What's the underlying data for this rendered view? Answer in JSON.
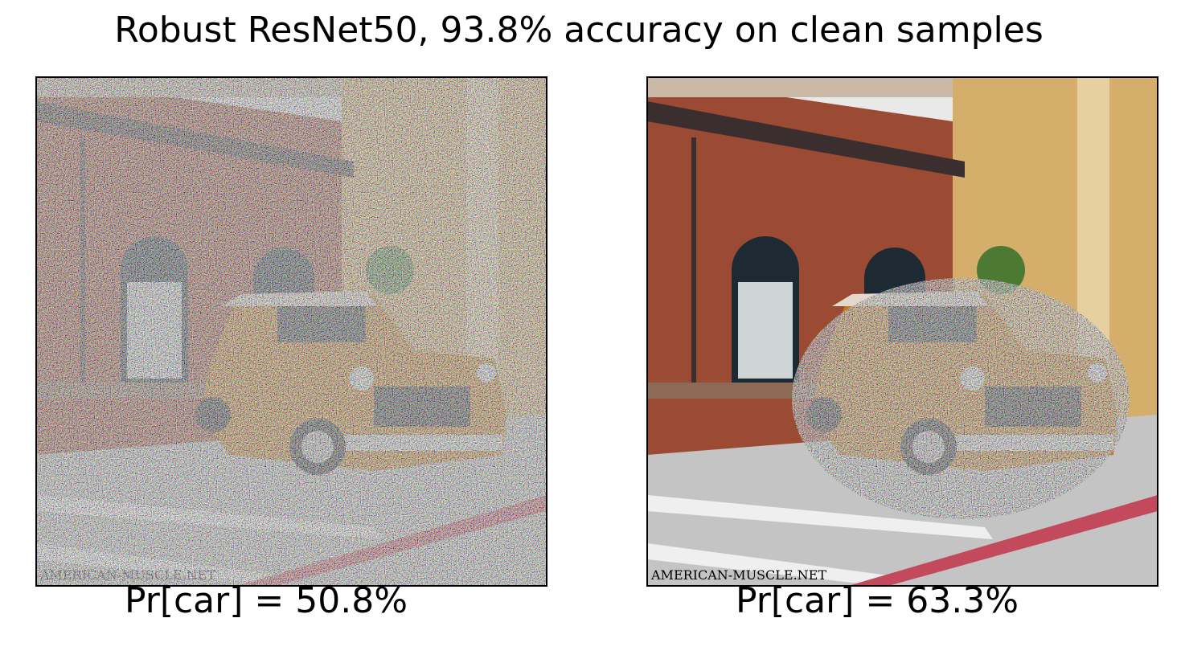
{
  "title": "Robust ResNet50, 93.8% accuracy on clean samples",
  "panels": [
    {
      "caption": "Pr[car] = 50.8%"
    },
    {
      "caption": "Pr[car] = 63.3%"
    }
  ]
}
